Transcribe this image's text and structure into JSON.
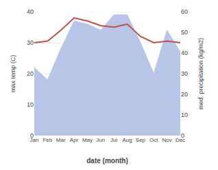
{
  "chart_data": {
    "type": "line",
    "categories": [
      "Jan",
      "Feb",
      "Mar",
      "Apr",
      "May",
      "Jun",
      "Jul",
      "Aug",
      "Sep",
      "Oct",
      "Nov",
      "Dec"
    ],
    "series": [
      {
        "type": "area",
        "color": "#b8c4e8",
        "values": [
          22,
          18,
          28,
          37,
          36,
          34,
          39,
          39,
          30,
          20,
          34,
          27
        ]
      },
      {
        "type": "line",
        "color": "#c0504d",
        "values": [
          30,
          30.5,
          34,
          38,
          37,
          35.5,
          35,
          36,
          32,
          30,
          30.5,
          30
        ]
      }
    ],
    "xlabel": "date (month)",
    "ylabel": "max temp (C)",
    "y2label": "med. precipitation (kg/m2)",
    "ylim": [
      0,
      40
    ],
    "yticks": [
      0,
      10,
      20,
      30,
      40
    ],
    "y2lim": [
      0,
      60
    ],
    "y2ticks": [
      0,
      10,
      20,
      30,
      40,
      50,
      60
    ],
    "grid": true
  }
}
